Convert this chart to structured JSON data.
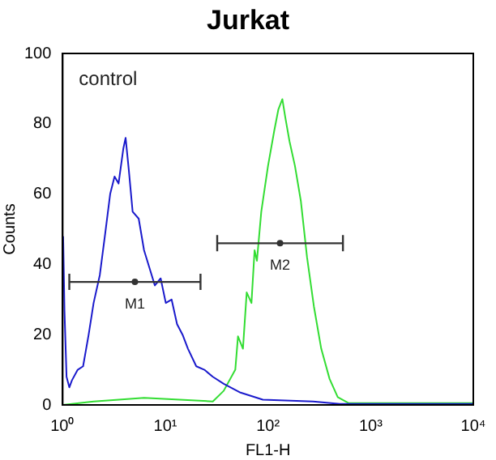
{
  "chart_data": {
    "type": "line",
    "title": "Jurkat",
    "xlabel": "FL1-H",
    "ylabel": "Counts",
    "log": "x",
    "grid": false,
    "legend": false,
    "marker": "none",
    "xlim": [
      1,
      10000
    ],
    "xticks": [
      {
        "value": 1,
        "label": "10⁰"
      },
      {
        "value": 10,
        "label": "10¹"
      },
      {
        "value": 100,
        "label": "10²"
      },
      {
        "value": 1000,
        "label": "10³"
      },
      {
        "value": 10000,
        "label": "10⁴"
      }
    ],
    "ylim": [
      0,
      100
    ],
    "yticks": [
      0,
      20,
      40,
      60,
      80,
      100
    ],
    "series": [
      {
        "color": "#1a1acc",
        "x": [
          1.01,
          1.04,
          1.09,
          1.16,
          1.23,
          1.4,
          1.58,
          1.79,
          2.0,
          2.3,
          2.6,
          2.9,
          3.2,
          3.5,
          3.9,
          4.1,
          4.4,
          4.8,
          5.5,
          6.2,
          7.0,
          7.9,
          9.0,
          10.1,
          11.5,
          13,
          14.7,
          16.6,
          20,
          24,
          29,
          37,
          54,
          89,
          275,
          500,
          3160,
          10000
        ],
        "values": [
          48,
          27,
          8,
          5,
          7,
          10,
          11,
          20,
          29,
          37,
          49,
          60,
          65,
          63,
          73,
          76,
          67,
          55,
          53,
          44,
          39,
          34,
          36,
          29,
          30,
          23,
          20,
          16,
          11,
          10,
          8,
          6,
          3.5,
          1.5,
          1,
          0.3,
          0.3,
          0.3
        ]
      },
      {
        "color": "#33dd33",
        "x": [
          1,
          2,
          6.2,
          29,
          37,
          48,
          51,
          57,
          62,
          69,
          74,
          78,
          86,
          100,
          115,
          126,
          138,
          147,
          162,
          183,
          209,
          240,
          280,
          330,
          398,
          478,
          613,
          10000
        ],
        "values": [
          0,
          1,
          2,
          1,
          4,
          10,
          19.5,
          16,
          32,
          29,
          44,
          41,
          55,
          68,
          78,
          84,
          87,
          82,
          75,
          68,
          58,
          42,
          28,
          16,
          7.4,
          2.2,
          0.5,
          0.5
        ]
      },
      {
        "type": "scatter",
        "marker": "circle",
        "color": "#333333",
        "x": [
          5.05,
          131
        ],
        "values": [
          35,
          46
        ],
        "xerrors": [
          [
            1.16,
            22
          ],
          [
            32,
            537
          ]
        ]
      }
    ],
    "annotations": [
      "control",
      {
        "text": "M1",
        "x": 5.05,
        "y": 35
      },
      {
        "text": "M2",
        "x": 131,
        "y": 46
      }
    ]
  }
}
